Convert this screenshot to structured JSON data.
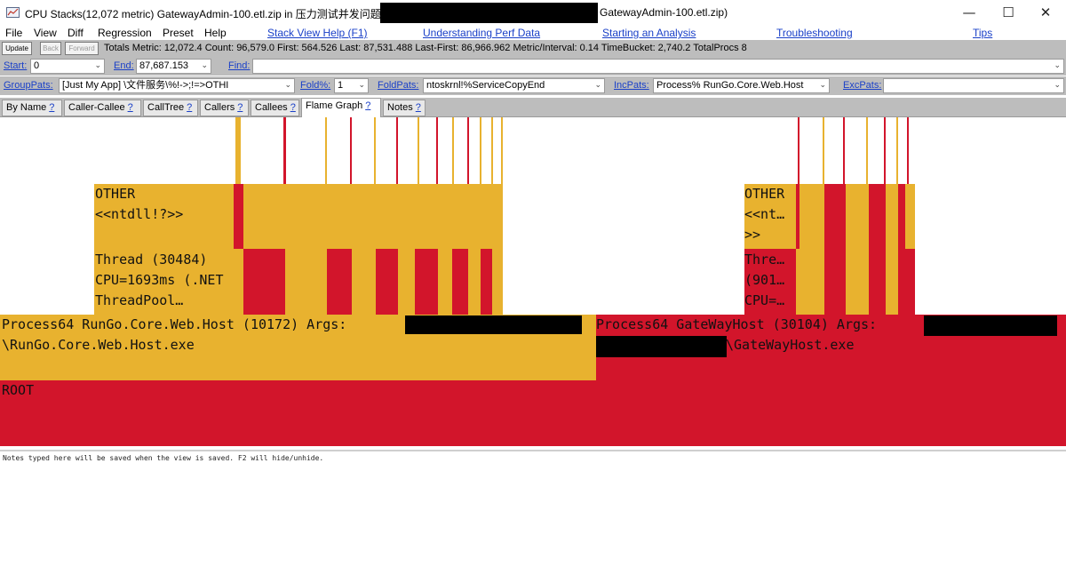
{
  "window": {
    "title_prefix": "CPU Stacks(12,072 metric) GatewayAdmin-100.etl.zip in 压力测试并发问题",
    "title_suffix": "GatewayAdmin-100.etl.zip)",
    "minimize_glyph": "—",
    "maximize_glyph": "☐",
    "close_glyph": "✕"
  },
  "menu": {
    "items": [
      "File",
      "View",
      "Diff",
      "Regression",
      "Preset",
      "Help"
    ],
    "links": [
      "Stack View Help (F1)",
      "Understanding Perf Data",
      "Starting an Analysis",
      "Troubleshooting",
      "Tips"
    ]
  },
  "statsbar": {
    "update_label": "Update",
    "back_label": "Back",
    "forward_label": "Forward",
    "totals": "Totals Metric: 12,072.4  Count: 96,579.0  First: 564.526 Last: 87,531.488  Last-First: 86,966.962  Metric/Interval: 0.14  TimeBucket: 2,740.2  TotalProcs 8"
  },
  "filters": {
    "start_label": "Start:",
    "start_value": "0",
    "end_label": "End:",
    "end_value": "87,687.153",
    "find_label": "Find:",
    "find_value": "",
    "grouppats_label": "GroupPats:",
    "grouppats_value": "[Just My App]        \\文件服务\\%!->;!=>OTHI",
    "fold_label": "Fold%:",
    "fold_value": "1",
    "foldpats_label": "FoldPats:",
    "foldpats_value": "ntoskrnl!%ServiceCopyEnd",
    "incpats_label": "IncPats:",
    "incpats_value": "Process% RunGo.Core.Web.Host",
    "excpats_label": "ExcPats:",
    "excpats_value": ""
  },
  "tabs": [
    {
      "label": "By Name",
      "help": "?"
    },
    {
      "label": "Caller-Callee",
      "help": "?"
    },
    {
      "label": "CallTree",
      "help": "?"
    },
    {
      "label": "Callers",
      "help": "?"
    },
    {
      "label": "Callees",
      "help": "?"
    },
    {
      "label": "Flame Graph",
      "help": "?"
    },
    {
      "label": "Notes",
      "help": "?"
    }
  ],
  "active_tab": "Flame Graph",
  "flame": {
    "root": "ROOT",
    "process1_line1": "Process64 RunGo.Core.Web.Host (10172) Args:",
    "process1_line2": "\\RunGo.Core.Web.Host.exe",
    "process2_line1": "Process64 GateWayHost (30104) Args:",
    "process2_line2": "\\GateWayHost.exe",
    "thread1": "Thread (30484)\nCPU=1693ms (.NET\nThreadPool…",
    "other1": "OTHER\n<<ntdll!?>>",
    "thread2": "Thre…\n(901…\nCPU=…",
    "other2": "OTHER\n<<nt…\n>>",
    "colors": {
      "yellow": "#e8b22f",
      "red": "#d2152b"
    }
  },
  "notes": {
    "text": "Notes typed here will be saved when the view is saved. F2 will hide/unhide."
  }
}
